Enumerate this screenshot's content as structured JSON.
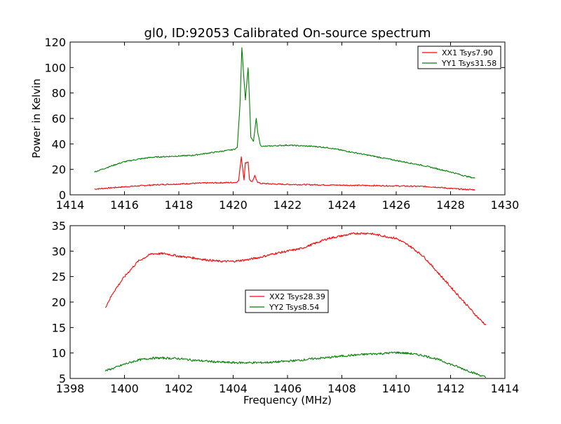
{
  "title": "gl0, ID:92053 Calibrated On-source spectrum",
  "chart_data": [
    {
      "type": "line",
      "title": "gl0, ID:92053 Calibrated On-source spectrum",
      "xlabel": "",
      "ylabel": "Power in Kelvin",
      "xlim": [
        1414,
        1430
      ],
      "ylim": [
        0,
        120
      ],
      "xticks": [
        "1414",
        "1416",
        "1418",
        "1420",
        "1422",
        "1424",
        "1426",
        "1428",
        "1430"
      ],
      "yticks": [
        "0",
        "20",
        "40",
        "60",
        "80",
        "100",
        "120"
      ],
      "legend_placement": "top-right",
      "series": [
        {
          "name": "XX1 Tsys7.90",
          "color": "#ff0000",
          "x": [
            1414.9,
            1415.5,
            1416,
            1416.5,
            1417,
            1417.5,
            1418,
            1418.5,
            1419,
            1419.5,
            1420,
            1420.1,
            1420.2,
            1420.3,
            1420.4,
            1420.45,
            1420.55,
            1420.6,
            1420.7,
            1420.8,
            1420.9,
            1421,
            1421.2,
            1421.5,
            1422,
            1423,
            1424,
            1425,
            1426,
            1427,
            1427.5,
            1428,
            1428.5,
            1428.9
          ],
          "y": [
            4.5,
            5.5,
            6.3,
            7,
            7.7,
            8.2,
            8.5,
            9,
            9.3,
            9.5,
            9.7,
            9.8,
            11,
            30,
            12,
            25,
            26,
            12,
            10,
            15,
            10,
            9,
            8.8,
            8.5,
            8.2,
            7.9,
            7.6,
            7.3,
            7,
            6.6,
            6,
            5,
            4.3,
            4
          ]
        },
        {
          "name": "YY1 Tsys31.58",
          "color": "#008000",
          "x": [
            1414.9,
            1415.3,
            1415.7,
            1416,
            1416.5,
            1417,
            1417.5,
            1418,
            1418.5,
            1419,
            1419.5,
            1420,
            1420.15,
            1420.25,
            1420.32,
            1420.4,
            1420.45,
            1420.55,
            1420.6,
            1420.65,
            1420.75,
            1420.85,
            1420.9,
            1421,
            1421.1,
            1421.5,
            1422,
            1422.5,
            1423,
            1423.5,
            1424,
            1424.5,
            1425,
            1425.5,
            1426,
            1426.5,
            1427,
            1427.5,
            1428,
            1428.5,
            1428.9
          ],
          "y": [
            18,
            21,
            24,
            26,
            28,
            29.5,
            30,
            30.5,
            31,
            32.5,
            34,
            35.5,
            37,
            70,
            116,
            90,
            75,
            100,
            75,
            45,
            42,
            60,
            50,
            39,
            38,
            38.5,
            39,
            38.5,
            38,
            37,
            35,
            33,
            31,
            29,
            27,
            25,
            23,
            20.5,
            18,
            15,
            13
          ]
        }
      ]
    },
    {
      "type": "line",
      "title": "",
      "xlabel": "Frequency (MHz)",
      "ylabel": "",
      "xlim": [
        1398,
        1414
      ],
      "ylim": [
        5,
        35
      ],
      "xticks": [
        "1398",
        "1400",
        "1402",
        "1404",
        "1406",
        "1408",
        "1410",
        "1412",
        "1414"
      ],
      "yticks": [
        "5",
        "10",
        "15",
        "20",
        "25",
        "30",
        "35"
      ],
      "legend_placement": "center",
      "series": [
        {
          "name": "XX2 Tsys28.39",
          "color": "#ff0000",
          "x": [
            1399.3,
            1399.6,
            1400,
            1400.5,
            1401,
            1401.5,
            1402,
            1402.5,
            1403,
            1403.5,
            1404,
            1404.5,
            1405,
            1405.5,
            1406,
            1406.5,
            1407,
            1407.5,
            1408,
            1408.5,
            1409,
            1409.5,
            1410,
            1410.5,
            1411,
            1411.5,
            1412,
            1412.5,
            1413,
            1413.3
          ],
          "y": [
            19,
            22,
            25,
            28,
            29.5,
            29.5,
            29,
            28.7,
            28.3,
            28,
            28,
            28.3,
            28.8,
            29.5,
            30,
            30.5,
            31.5,
            32.5,
            33,
            33.5,
            33.5,
            33,
            32.5,
            31,
            29,
            26,
            23,
            20,
            17,
            15.5
          ]
        },
        {
          "name": "YY2 Tsys8.54",
          "color": "#008000",
          "x": [
            1399.3,
            1399.7,
            1400,
            1400.5,
            1401,
            1401.5,
            1402,
            1402.5,
            1403,
            1403.5,
            1404,
            1404.5,
            1405,
            1405.5,
            1406,
            1406.5,
            1407,
            1407.5,
            1408,
            1408.5,
            1409,
            1409.5,
            1410,
            1410.5,
            1411,
            1411.5,
            1412,
            1412.5,
            1413,
            1413.3
          ],
          "y": [
            6.5,
            7.2,
            7.8,
            8.6,
            9,
            9,
            8.9,
            8.6,
            8.4,
            8.2,
            8.1,
            8.1,
            8.1,
            8.2,
            8.4,
            8.6,
            8.9,
            9.1,
            9.4,
            9.6,
            9.8,
            9.9,
            10.1,
            9.9,
            9.5,
            8.8,
            7.8,
            6.8,
            5.8,
            5.2
          ]
        }
      ]
    }
  ]
}
